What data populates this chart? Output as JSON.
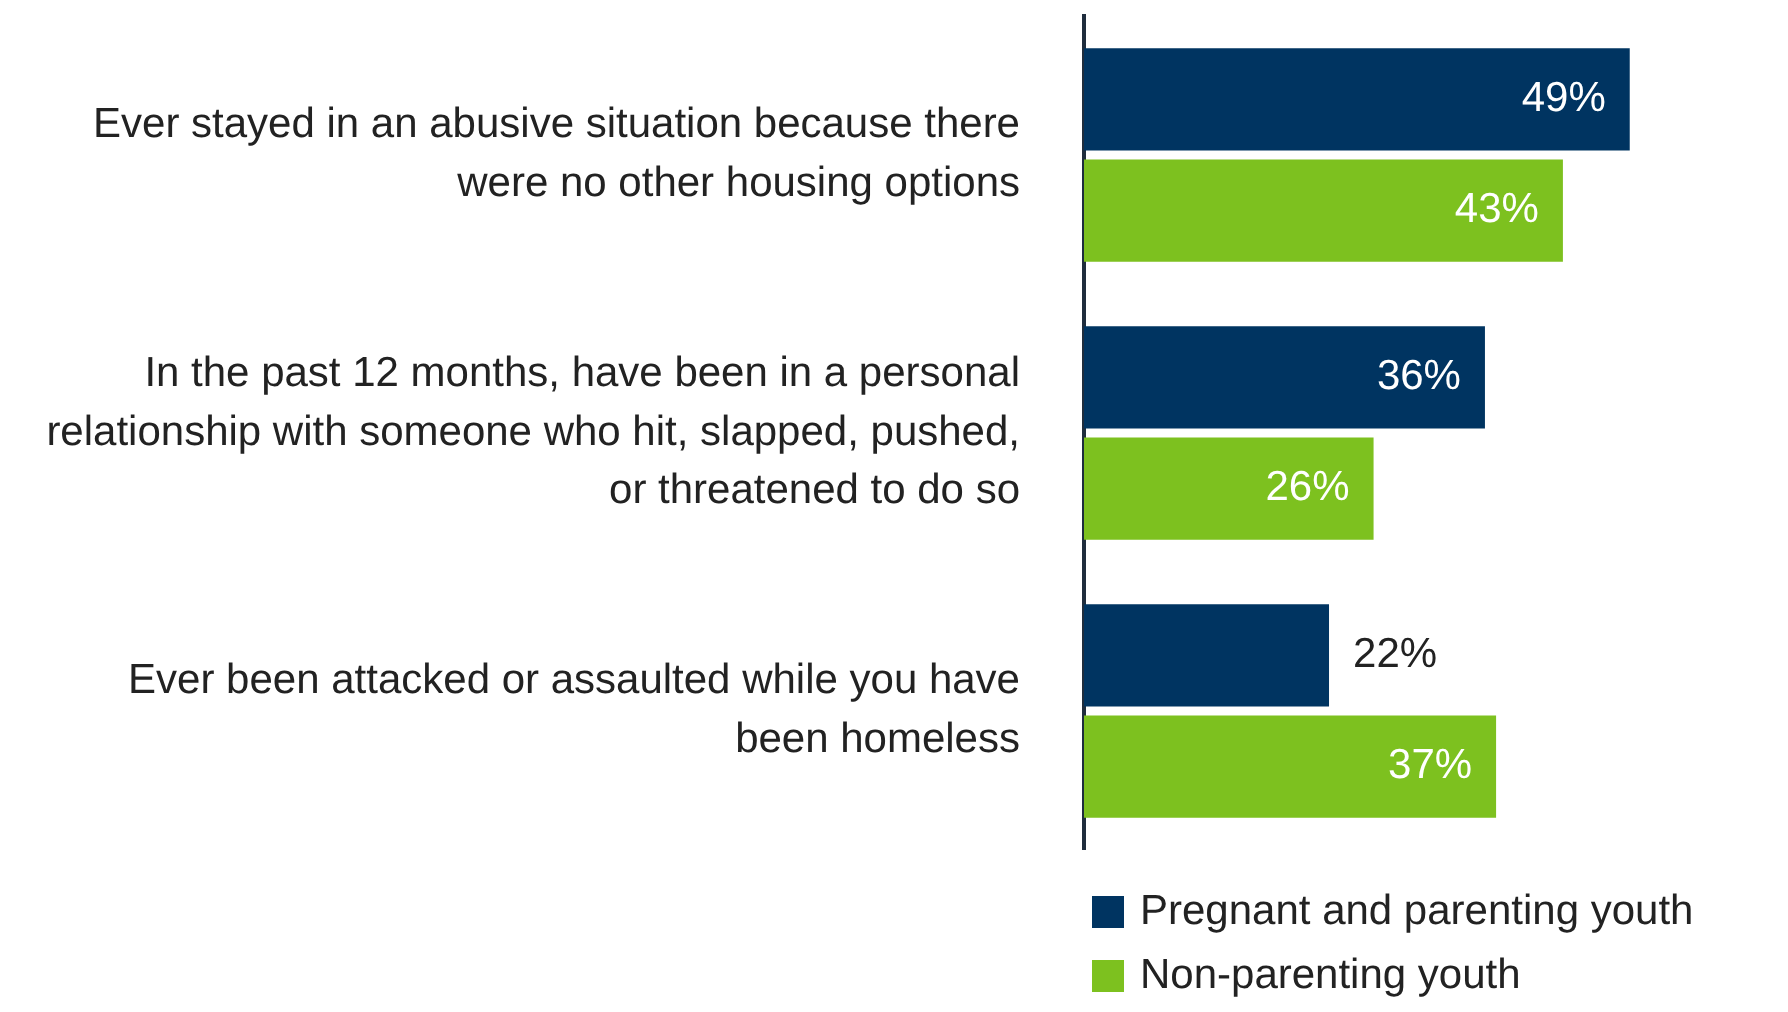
{
  "chart_data": {
    "type": "bar",
    "orientation": "horizontal",
    "categories": [
      "Ever stayed in an abusive situation because there were no other housing options",
      "In the past 12 months, have been in a personal relationship with someone who hit, slapped, pushed, or threatened to do so",
      "Ever been attacked or assaulted while you have been homeless"
    ],
    "series": [
      {
        "name": "Pregnant and parenting youth",
        "color": "#003461",
        "values": [
          49,
          36,
          22
        ],
        "value_labels": [
          "49%",
          "36%",
          "22%"
        ]
      },
      {
        "name": "Non-parenting youth",
        "color": "#7dc11f",
        "values": [
          43,
          26,
          37
        ],
        "value_labels": [
          "43%",
          "26%",
          "37%"
        ]
      }
    ],
    "legend": "bottom"
  }
}
